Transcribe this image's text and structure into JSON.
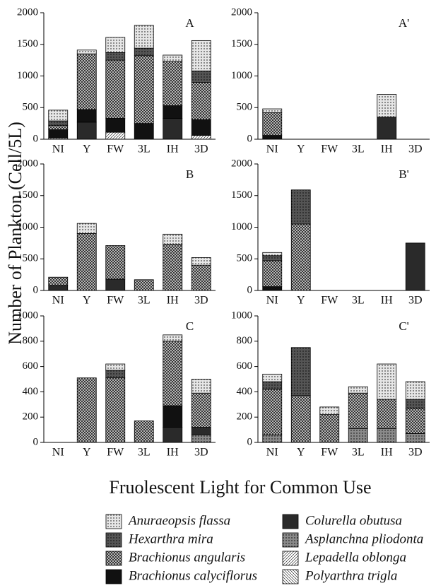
{
  "y_label": "Number of Plankton (Cell/5L)",
  "x_label": "Fruolescent Light for Common Use",
  "chart_data": [
    {
      "type": "stacked-bar",
      "title": "A",
      "categories": [
        "NI",
        "Y",
        "FW",
        "3L",
        "IH",
        "3D"
      ],
      "ylim": [
        0,
        2000
      ],
      "yticks": [
        0,
        500,
        1000,
        1500,
        2000
      ],
      "series": [
        {
          "name": "Anuraeopsis flassa",
          "color": "#e6e6e6",
          "pattern": "dots",
          "values": [
            170,
            60,
            240,
            360,
            100,
            480
          ]
        },
        {
          "name": "Hexarthra mira",
          "color": "#555555",
          "pattern": "dots",
          "values": [
            70,
            0,
            120,
            120,
            0,
            180
          ]
        },
        {
          "name": "Brachionus angularis",
          "color": "#d0d0d0",
          "pattern": "cross",
          "values": [
            70,
            880,
            920,
            1070,
            700,
            590
          ]
        },
        {
          "name": "Brachionus calyciflorus",
          "color": "#111111",
          "pattern": "solid",
          "values": [
            130,
            200,
            220,
            250,
            200,
            250
          ]
        },
        {
          "name": "Colurella obutusa",
          "color": "#2a2a2a",
          "pattern": "solid",
          "values": [
            0,
            270,
            0,
            0,
            330,
            0
          ]
        },
        {
          "name": "Asplanchna pliodonta",
          "color": "#8a8a8a",
          "pattern": "dots",
          "values": [
            0,
            0,
            0,
            0,
            0,
            0
          ]
        },
        {
          "name": "Lepadella oblonga",
          "color": "#ffffff",
          "pattern": "diag",
          "values": [
            20,
            0,
            110,
            0,
            0,
            60
          ]
        },
        {
          "name": "Polyarthra trigla",
          "color": "#ffffff",
          "pattern": "back",
          "values": [
            0,
            0,
            0,
            0,
            0,
            0
          ]
        }
      ]
    },
    {
      "type": "stacked-bar",
      "title": "A'",
      "categories": [
        "NI",
        "Y",
        "FW",
        "3L",
        "IH",
        "3D"
      ],
      "ylim": [
        0,
        2000
      ],
      "yticks": [
        0,
        500,
        1000,
        1500,
        2000
      ],
      "series": [
        {
          "name": "Anuraeopsis flassa",
          "color": "#e6e6e6",
          "pattern": "dots",
          "values": [
            60,
            0,
            0,
            0,
            360,
            0
          ]
        },
        {
          "name": "Hexarthra mira",
          "color": "#555555",
          "pattern": "dots",
          "values": [
            0,
            0,
            0,
            0,
            0,
            0
          ]
        },
        {
          "name": "Brachionus angularis",
          "color": "#d0d0d0",
          "pattern": "cross",
          "values": [
            360,
            0,
            0,
            0,
            0,
            0
          ]
        },
        {
          "name": "Brachionus calyciflorus",
          "color": "#111111",
          "pattern": "solid",
          "values": [
            60,
            0,
            0,
            0,
            0,
            0
          ]
        },
        {
          "name": "Colurella obutusa",
          "color": "#2a2a2a",
          "pattern": "solid",
          "values": [
            0,
            0,
            0,
            0,
            350,
            0
          ]
        },
        {
          "name": "Asplanchna pliodonta",
          "color": "#8a8a8a",
          "pattern": "dots",
          "values": [
            0,
            0,
            0,
            0,
            0,
            0
          ]
        },
        {
          "name": "Lepadella oblonga",
          "color": "#ffffff",
          "pattern": "diag",
          "values": [
            0,
            0,
            0,
            0,
            0,
            0
          ]
        },
        {
          "name": "Polyarthra trigla",
          "color": "#ffffff",
          "pattern": "back",
          "values": [
            0,
            0,
            0,
            0,
            0,
            0
          ]
        }
      ]
    },
    {
      "type": "stacked-bar",
      "title": "B",
      "categories": [
        "NI",
        "Y",
        "FW",
        "3L",
        "IH",
        "3D"
      ],
      "ylim": [
        0,
        2000
      ],
      "yticks": [
        0,
        500,
        1000,
        1500,
        2000
      ],
      "series": [
        {
          "name": "Anuraeopsis flassa",
          "color": "#e6e6e6",
          "pattern": "dots",
          "values": [
            0,
            160,
            0,
            0,
            160,
            120
          ]
        },
        {
          "name": "Hexarthra mira",
          "color": "#555555",
          "pattern": "dots",
          "values": [
            0,
            0,
            0,
            0,
            0,
            0
          ]
        },
        {
          "name": "Brachionus angularis",
          "color": "#d0d0d0",
          "pattern": "cross",
          "values": [
            130,
            900,
            530,
            170,
            730,
            400
          ]
        },
        {
          "name": "Brachionus calyciflorus",
          "color": "#111111",
          "pattern": "solid",
          "values": [
            0,
            0,
            0,
            0,
            0,
            0
          ]
        },
        {
          "name": "Colurella obutusa",
          "color": "#2a2a2a",
          "pattern": "solid",
          "values": [
            80,
            0,
            180,
            0,
            0,
            0
          ]
        },
        {
          "name": "Asplanchna pliodonta",
          "color": "#8a8a8a",
          "pattern": "dots",
          "values": [
            0,
            0,
            0,
            0,
            0,
            0
          ]
        },
        {
          "name": "Lepadella oblonga",
          "color": "#ffffff",
          "pattern": "diag",
          "values": [
            0,
            0,
            0,
            0,
            0,
            0
          ]
        },
        {
          "name": "Polyarthra trigla",
          "color": "#ffffff",
          "pattern": "back",
          "values": [
            0,
            0,
            0,
            0,
            0,
            0
          ]
        }
      ]
    },
    {
      "type": "stacked-bar",
      "title": "B'",
      "categories": [
        "NI",
        "Y",
        "FW",
        "3L",
        "IH",
        "3D"
      ],
      "ylim": [
        0,
        2000
      ],
      "yticks": [
        0,
        500,
        1000,
        1500,
        2000
      ],
      "series": [
        {
          "name": "Anuraeopsis flassa",
          "color": "#e6e6e6",
          "pattern": "dots",
          "values": [
            50,
            0,
            0,
            0,
            0,
            0
          ]
        },
        {
          "name": "Hexarthra mira",
          "color": "#555555",
          "pattern": "dots",
          "values": [
            80,
            540,
            0,
            0,
            0,
            0
          ]
        },
        {
          "name": "Brachionus angularis",
          "color": "#d0d0d0",
          "pattern": "cross",
          "values": [
            410,
            1050,
            0,
            0,
            0,
            0
          ]
        },
        {
          "name": "Brachionus calyciflorus",
          "color": "#111111",
          "pattern": "solid",
          "values": [
            60,
            0,
            0,
            0,
            0,
            0
          ]
        },
        {
          "name": "Colurella obutusa",
          "color": "#2a2a2a",
          "pattern": "solid",
          "values": [
            0,
            0,
            0,
            0,
            0,
            750
          ]
        },
        {
          "name": "Asplanchna pliodonta",
          "color": "#8a8a8a",
          "pattern": "dots",
          "values": [
            0,
            0,
            0,
            0,
            0,
            0
          ]
        },
        {
          "name": "Lepadella oblonga",
          "color": "#ffffff",
          "pattern": "diag",
          "values": [
            0,
            0,
            0,
            0,
            0,
            0
          ]
        },
        {
          "name": "Polyarthra trigla",
          "color": "#ffffff",
          "pattern": "back",
          "values": [
            0,
            0,
            0,
            0,
            0,
            0
          ]
        }
      ]
    },
    {
      "type": "stacked-bar",
      "title": "C",
      "categories": [
        "NI",
        "Y",
        "FW",
        "3L",
        "IH",
        "3D"
      ],
      "ylim": [
        0,
        1000
      ],
      "yticks": [
        0,
        200,
        400,
        600,
        800,
        1000
      ],
      "series": [
        {
          "name": "Anuraeopsis flassa",
          "color": "#e6e6e6",
          "pattern": "dots",
          "values": [
            0,
            0,
            50,
            0,
            50,
            110
          ]
        },
        {
          "name": "Hexarthra mira",
          "color": "#555555",
          "pattern": "dots",
          "values": [
            0,
            0,
            60,
            0,
            0,
            0
          ]
        },
        {
          "name": "Brachionus angularis",
          "color": "#d0d0d0",
          "pattern": "cross",
          "values": [
            0,
            510,
            510,
            170,
            510,
            270
          ]
        },
        {
          "name": "Brachionus calyciflorus",
          "color": "#111111",
          "pattern": "solid",
          "values": [
            0,
            0,
            0,
            0,
            170,
            0
          ]
        },
        {
          "name": "Colurella obutusa",
          "color": "#2a2a2a",
          "pattern": "solid",
          "values": [
            0,
            0,
            0,
            0,
            120,
            60
          ]
        },
        {
          "name": "Asplanchna pliodonta",
          "color": "#8a8a8a",
          "pattern": "dots",
          "values": [
            0,
            0,
            0,
            0,
            0,
            60
          ]
        },
        {
          "name": "Lepadella oblonga",
          "color": "#ffffff",
          "pattern": "diag",
          "values": [
            0,
            0,
            0,
            0,
            0,
            0
          ]
        },
        {
          "name": "Polyarthra trigla",
          "color": "#ffffff",
          "pattern": "back",
          "values": [
            0,
            0,
            0,
            0,
            0,
            0
          ]
        }
      ]
    },
    {
      "type": "stacked-bar",
      "title": "C'",
      "categories": [
        "NI",
        "Y",
        "FW",
        "3L",
        "IH",
        "3D"
      ],
      "ylim": [
        0,
        1000
      ],
      "yticks": [
        0,
        200,
        400,
        600,
        800,
        1000
      ],
      "series": [
        {
          "name": "Anuraeopsis flassa",
          "color": "#e6e6e6",
          "pattern": "dots",
          "values": [
            60,
            0,
            60,
            50,
            280,
            140
          ]
        },
        {
          "name": "Hexarthra mira",
          "color": "#555555",
          "pattern": "dots",
          "values": [
            60,
            380,
            0,
            0,
            0,
            70
          ]
        },
        {
          "name": "Brachionus angularis",
          "color": "#d0d0d0",
          "pattern": "cross",
          "values": [
            360,
            370,
            220,
            280,
            230,
            200
          ]
        },
        {
          "name": "Brachionus calyciflorus",
          "color": "#111111",
          "pattern": "solid",
          "values": [
            0,
            0,
            0,
            0,
            0,
            0
          ]
        },
        {
          "name": "Colurella obutusa",
          "color": "#2a2a2a",
          "pattern": "solid",
          "values": [
            0,
            0,
            0,
            0,
            0,
            0
          ]
        },
        {
          "name": "Asplanchna pliodonta",
          "color": "#8a8a8a",
          "pattern": "dots",
          "values": [
            60,
            0,
            0,
            110,
            110,
            70
          ]
        },
        {
          "name": "Lepadella oblonga",
          "color": "#ffffff",
          "pattern": "diag",
          "values": [
            0,
            0,
            0,
            0,
            0,
            0
          ]
        },
        {
          "name": "Polyarthra trigla",
          "color": "#ffffff",
          "pattern": "back",
          "values": [
            0,
            0,
            0,
            0,
            0,
            0
          ]
        }
      ]
    }
  ]
}
